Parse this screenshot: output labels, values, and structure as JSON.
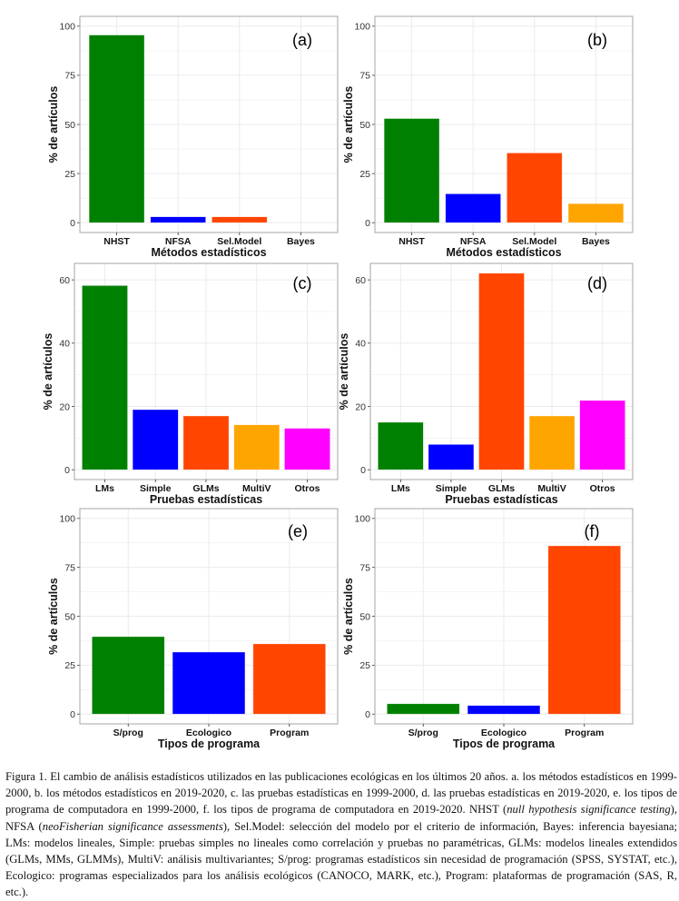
{
  "chart_data": [
    {
      "id": "a",
      "type": "bar",
      "panel_label": "(a)",
      "title": "",
      "xlabel": "Métodos estadísticos",
      "ylabel": "% de artículos",
      "categories": [
        "NHST",
        "NFSA",
        "Sel.Model",
        "Bayes"
      ],
      "values": [
        95.5,
        3,
        3,
        0
      ],
      "colors": [
        "#008000",
        "#0000FF",
        "#FF4500",
        "#FFA500"
      ],
      "ylim": [
        -5,
        105
      ],
      "yticks": [
        0,
        25,
        50,
        75,
        100
      ],
      "grid": true
    },
    {
      "id": "b",
      "type": "bar",
      "panel_label": "(b)",
      "title": "",
      "xlabel": "Métodos estadísticos",
      "ylabel": "% de artículos",
      "categories": [
        "NHST",
        "NFSA",
        "Sel.Model",
        "Bayes"
      ],
      "values": [
        53,
        14.7,
        35.5,
        9.7
      ],
      "colors": [
        "#008000",
        "#0000FF",
        "#FF4500",
        "#FFA500"
      ],
      "ylim": [
        -5,
        105
      ],
      "yticks": [
        0,
        25,
        50,
        75,
        100
      ],
      "grid": true
    },
    {
      "id": "c",
      "type": "bar",
      "panel_label": "(c)",
      "title": "",
      "xlabel": "Pruebas estadísticas",
      "ylabel": "% de artículos",
      "categories": [
        "LMs",
        "Simple",
        "GLMs",
        "MultiV",
        "Otros"
      ],
      "values": [
        58.2,
        19,
        17,
        14.2,
        13.1
      ],
      "colors": [
        "#008000",
        "#0000FF",
        "#FF4500",
        "#FFA500",
        "#FF00FF"
      ],
      "ylim": [
        -3.1,
        65.2
      ],
      "yticks": [
        0,
        20,
        40,
        60
      ],
      "grid": true
    },
    {
      "id": "d",
      "type": "bar",
      "panel_label": "(d)",
      "title": "",
      "xlabel": "Pruebas estadísticas",
      "ylabel": "% de artículos",
      "categories": [
        "LMs",
        "Simple",
        "GLMs",
        "MultiV",
        "Otros"
      ],
      "values": [
        15,
        8,
        62.1,
        17,
        21.9
      ],
      "colors": [
        "#008000",
        "#0000FF",
        "#FF4500",
        "#FFA500",
        "#FF00FF"
      ],
      "ylim": [
        -3.1,
        65.2
      ],
      "yticks": [
        0,
        20,
        40,
        60
      ],
      "grid": true
    },
    {
      "id": "e",
      "type": "bar",
      "panel_label": "(e)",
      "title": "",
      "xlabel": "Tipos de programa",
      "ylabel": "% de artículos",
      "categories": [
        "S/prog",
        "Ecologico",
        "Program"
      ],
      "values": [
        39.6,
        31.7,
        35.9
      ],
      "colors": [
        "#008000",
        "#0000FF",
        "#FF4500"
      ],
      "ylim": [
        -5,
        105
      ],
      "yticks": [
        0,
        25,
        50,
        75,
        100
      ],
      "grid": true
    },
    {
      "id": "f",
      "type": "bar",
      "panel_label": "(f)",
      "title": "",
      "xlabel": "Tipos de programa",
      "ylabel": "% de artículos",
      "categories": [
        "S/prog",
        "Ecologico",
        "Program"
      ],
      "values": [
        5.3,
        4.4,
        86
      ],
      "colors": [
        "#008000",
        "#0000FF",
        "#FF4500"
      ],
      "ylim": [
        -5,
        105
      ],
      "yticks": [
        0,
        25,
        50,
        75,
        100
      ],
      "grid": true
    }
  ],
  "caption": {
    "parts": [
      {
        "t": "Figura 1. El cambio de análisis estadísticos utilizados en las publicaciones ecológicas en los últimos 20 años. a. los métodos estadísticos en 1999-2000, b. los métodos estadísticos en 2019-2020, c. las pruebas estadísticas en 1999-2000, d. las pruebas estadísticas en 2019-2020, e. los tipos de programa de computadora en 1999-2000, f. los tipos de programa de computadora en 2019-2020. NHST (",
        "i": false
      },
      {
        "t": "null hypothesis significance testing",
        "i": true
      },
      {
        "t": "), NFSA (",
        "i": false
      },
      {
        "t": "neoFisherian significance assessments",
        "i": true
      },
      {
        "t": "), Sel.Model: selección del modelo por el criterio de información, Bayes: inferencia bayesiana; LMs: modelos lineales, Simple: pruebas simples no lineales como correlación y pruebas no paramétricas, GLMs: modelos lineales extendidos (GLMs, MMs, GLMMs), MultiV: análisis multivariantes; S/prog: programas estadísticos sin necesidad de programación (SPSS, SYSTAT, etc.), Ecologico: programas especializados para los análisis ecológicos (CANOCO, MARK, etc.), Program: plataformas de programación (SAS, R, etc.).",
        "i": false
      }
    ]
  }
}
